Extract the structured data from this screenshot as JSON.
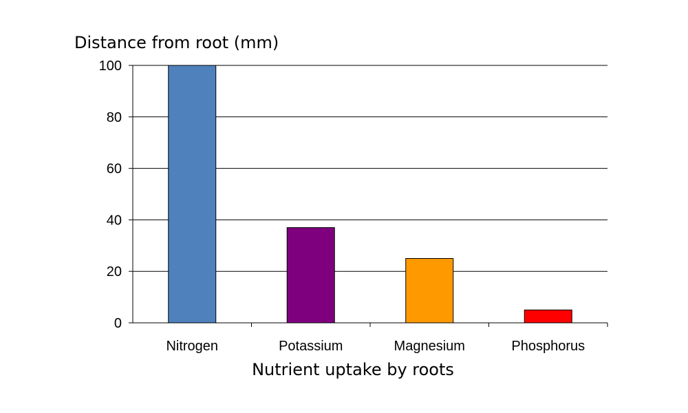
{
  "chart_data": {
    "type": "bar",
    "ylabel": "Distance from root (mm)",
    "xlabel": "Nutrient uptake by roots",
    "categories": [
      "Nitrogen",
      "Potassium",
      "Magnesium",
      "Phosphorus"
    ],
    "values": [
      100,
      37,
      25,
      5
    ],
    "colors": [
      "#4f81bd",
      "#7f007f",
      "#ff9900",
      "#ff0000"
    ],
    "ylim": [
      0,
      100
    ],
    "yticks": [
      0,
      20,
      40,
      60,
      80,
      100
    ],
    "grid": true,
    "legend": "none"
  }
}
